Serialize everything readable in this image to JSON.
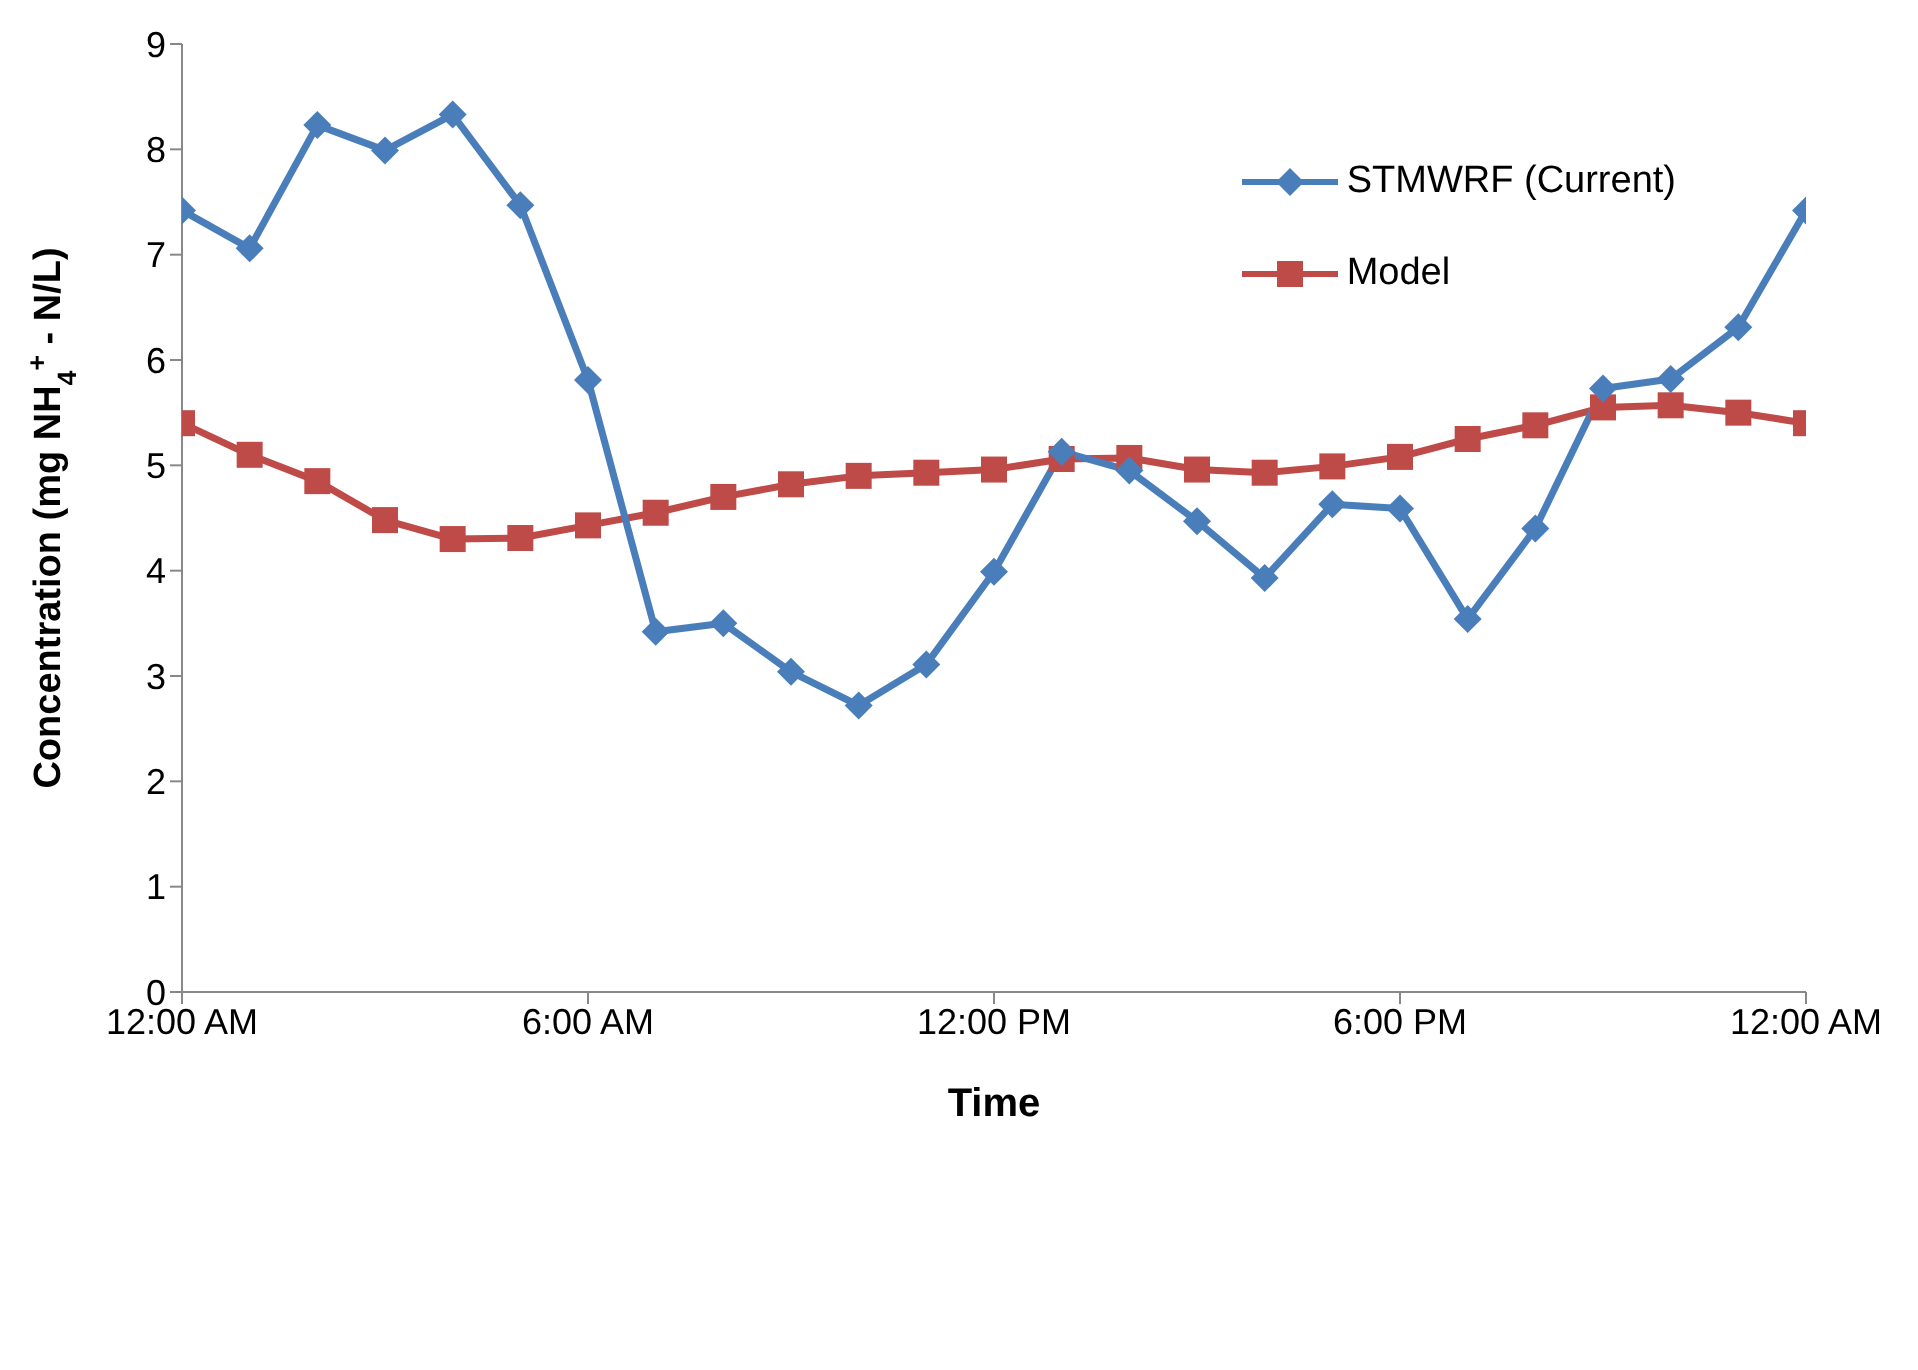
{
  "chart_data": {
    "type": "line",
    "xlabel": "Time",
    "ylabel": "Concentration (mg NH$_{4}$$^{+}$ - N/L)",
    "x": [
      0,
      1,
      2,
      3,
      4,
      5,
      6,
      7,
      8,
      9,
      10,
      11,
      12,
      13,
      14,
      15,
      16,
      17,
      18,
      19,
      20,
      21,
      22,
      23,
      24
    ],
    "series": [
      {
        "name": "STMWRF (Current)",
        "color": "#4a7ebb",
        "marker": "diamond",
        "values": [
          7.42,
          7.06,
          8.23,
          7.99,
          8.33,
          7.47,
          5.81,
          3.42,
          3.5,
          3.04,
          2.72,
          3.11,
          3.99,
          5.13,
          4.95,
          4.47,
          3.93,
          4.63,
          4.59,
          3.54,
          4.4,
          5.73,
          5.82,
          6.31,
          7.42
        ]
      },
      {
        "name": "Model",
        "color": "#be4b48",
        "marker": "square",
        "values": [
          5.4,
          5.1,
          4.85,
          4.48,
          4.3,
          4.31,
          4.43,
          4.55,
          4.7,
          4.82,
          4.9,
          4.93,
          4.96,
          5.06,
          5.07,
          4.96,
          4.93,
          4.99,
          5.08,
          5.25,
          5.38,
          5.55,
          5.57,
          5.5,
          5.4
        ]
      }
    ],
    "xlim": [
      0,
      24
    ],
    "xticks": [
      {
        "value": 0,
        "label": "12:00 AM"
      },
      {
        "value": 6,
        "label": "6:00 AM"
      },
      {
        "value": 12,
        "label": "12:00 PM"
      },
      {
        "value": 18,
        "label": "6:00 PM"
      },
      {
        "value": 24,
        "label": "12:00 AM"
      }
    ],
    "ylim": [
      0,
      9
    ],
    "yticks": [
      0,
      1,
      2,
      3,
      4,
      5,
      6,
      7,
      8,
      9
    ],
    "grid": false,
    "legend": "top right",
    "line_style": "solid"
  }
}
